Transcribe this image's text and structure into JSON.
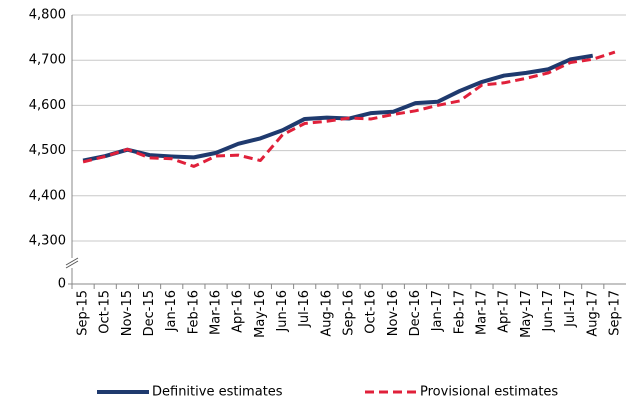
{
  "chart_data": {
    "type": "line",
    "categories": [
      "Sep-15",
      "Oct-15",
      "Nov-15",
      "Dec-15",
      "Jan-16",
      "Feb-16",
      "Mar-16",
      "Apr-16",
      "May-16",
      "Jun-16",
      "Jul-16",
      "Aug-16",
      "Sep-16",
      "Oct-16",
      "Nov-16",
      "Dec-16",
      "Jan-17",
      "Feb-17",
      "Mar-17",
      "Apr-17",
      "May-17",
      "Jun-17",
      "Jul-17",
      "Aug-17",
      "Sep-17"
    ],
    "series": [
      {
        "name": "Definitive estimates",
        "color": "#1f3a6e",
        "style": "solid",
        "values": [
          4478,
          4488,
          4502,
          4490,
          4487,
          4485,
          4495,
          4515,
          4527,
          4545,
          4570,
          4573,
          4571,
          4583,
          4586,
          4605,
          4608,
          4632,
          4652,
          4666,
          4672,
          4680,
          4702,
          4710,
          null
        ]
      },
      {
        "name": "Provisional estimates",
        "color": "#e0203a",
        "style": "dashed",
        "values": [
          4475,
          4487,
          4503,
          4484,
          4482,
          4465,
          4488,
          4490,
          4478,
          4535,
          4560,
          4565,
          4572,
          4570,
          4580,
          4588,
          4600,
          4610,
          4645,
          4650,
          4660,
          4672,
          4695,
          4702,
          4718
        ]
      }
    ],
    "ylim": [
      4300,
      4800
    ],
    "yticks": [
      {
        "value": 0,
        "label": "0"
      },
      {
        "value": 4300,
        "label": "4,300"
      },
      {
        "value": 4400,
        "label": "4,400"
      },
      {
        "value": 4500,
        "label": "4,500"
      },
      {
        "value": 4600,
        "label": "4,600"
      },
      {
        "value": 4700,
        "label": "4,700"
      },
      {
        "value": 4800,
        "label": "4,800"
      }
    ],
    "axis_break": true,
    "grid": true,
    "legend": "bottom"
  }
}
